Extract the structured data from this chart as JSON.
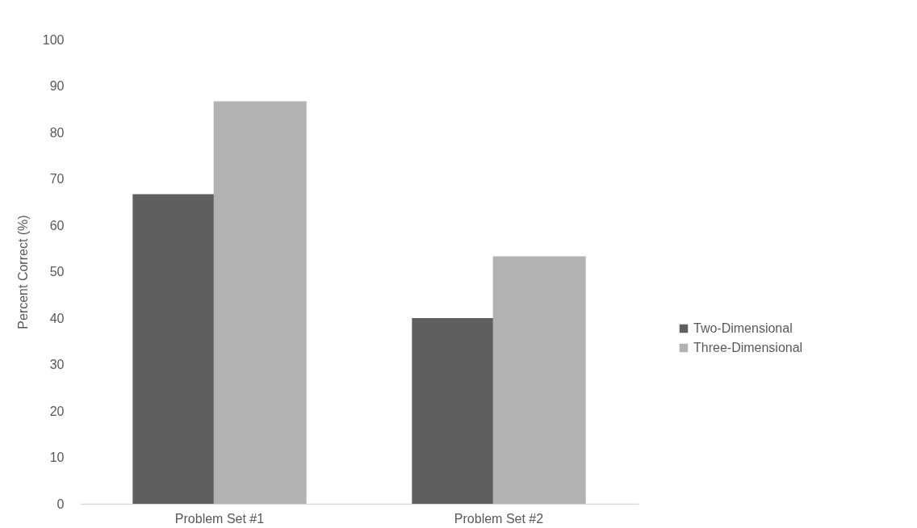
{
  "chart_data": {
    "type": "bar",
    "ylabel": "Percent Correct (%)",
    "categories": [
      "Problem Set #1",
      "Problem Set #2"
    ],
    "series": [
      {
        "name": "Two-Dimensional",
        "color": "#5f5f5f",
        "values": [
          66.7,
          40
        ]
      },
      {
        "name": "Three-Dimensional",
        "color": "#b2b2b2",
        "values": [
          86.7,
          53.3
        ]
      }
    ],
    "ylim": [
      0,
      100
    ],
    "yticks": [
      0,
      10,
      20,
      30,
      40,
      50,
      60,
      70,
      80,
      90,
      100
    ],
    "grid": false,
    "legend": "right"
  }
}
